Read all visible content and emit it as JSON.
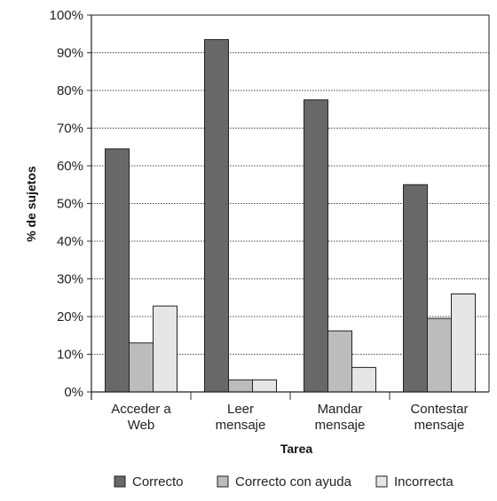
{
  "chart_data": {
    "type": "bar",
    "categories": [
      [
        "Acceder a",
        "Web"
      ],
      [
        "Leer",
        "mensaje"
      ],
      [
        "Mandar",
        "mensaje"
      ],
      [
        "Contestar",
        "mensaje"
      ]
    ],
    "series": [
      {
        "name": "Correcto",
        "color": "#686868",
        "values": [
          64.5,
          93.5,
          77.5,
          55
        ]
      },
      {
        "name": "Correcto con ayuda",
        "color": "#bcbcbc",
        "values": [
          13,
          3.2,
          16.2,
          19.5
        ]
      },
      {
        "name": "Incorrecta",
        "color": "#e6e6e6",
        "values": [
          22.8,
          3.2,
          6.5,
          26
        ]
      }
    ],
    "xlabel": "Tarea",
    "ylabel": "% de sujetos",
    "ylim": [
      0,
      100
    ],
    "yticks": [
      "0%",
      "10%",
      "20%",
      "30%",
      "40%",
      "50%",
      "60%",
      "70%",
      "80%",
      "90%",
      "100%"
    ],
    "grid": true,
    "legend_position": "bottom"
  }
}
